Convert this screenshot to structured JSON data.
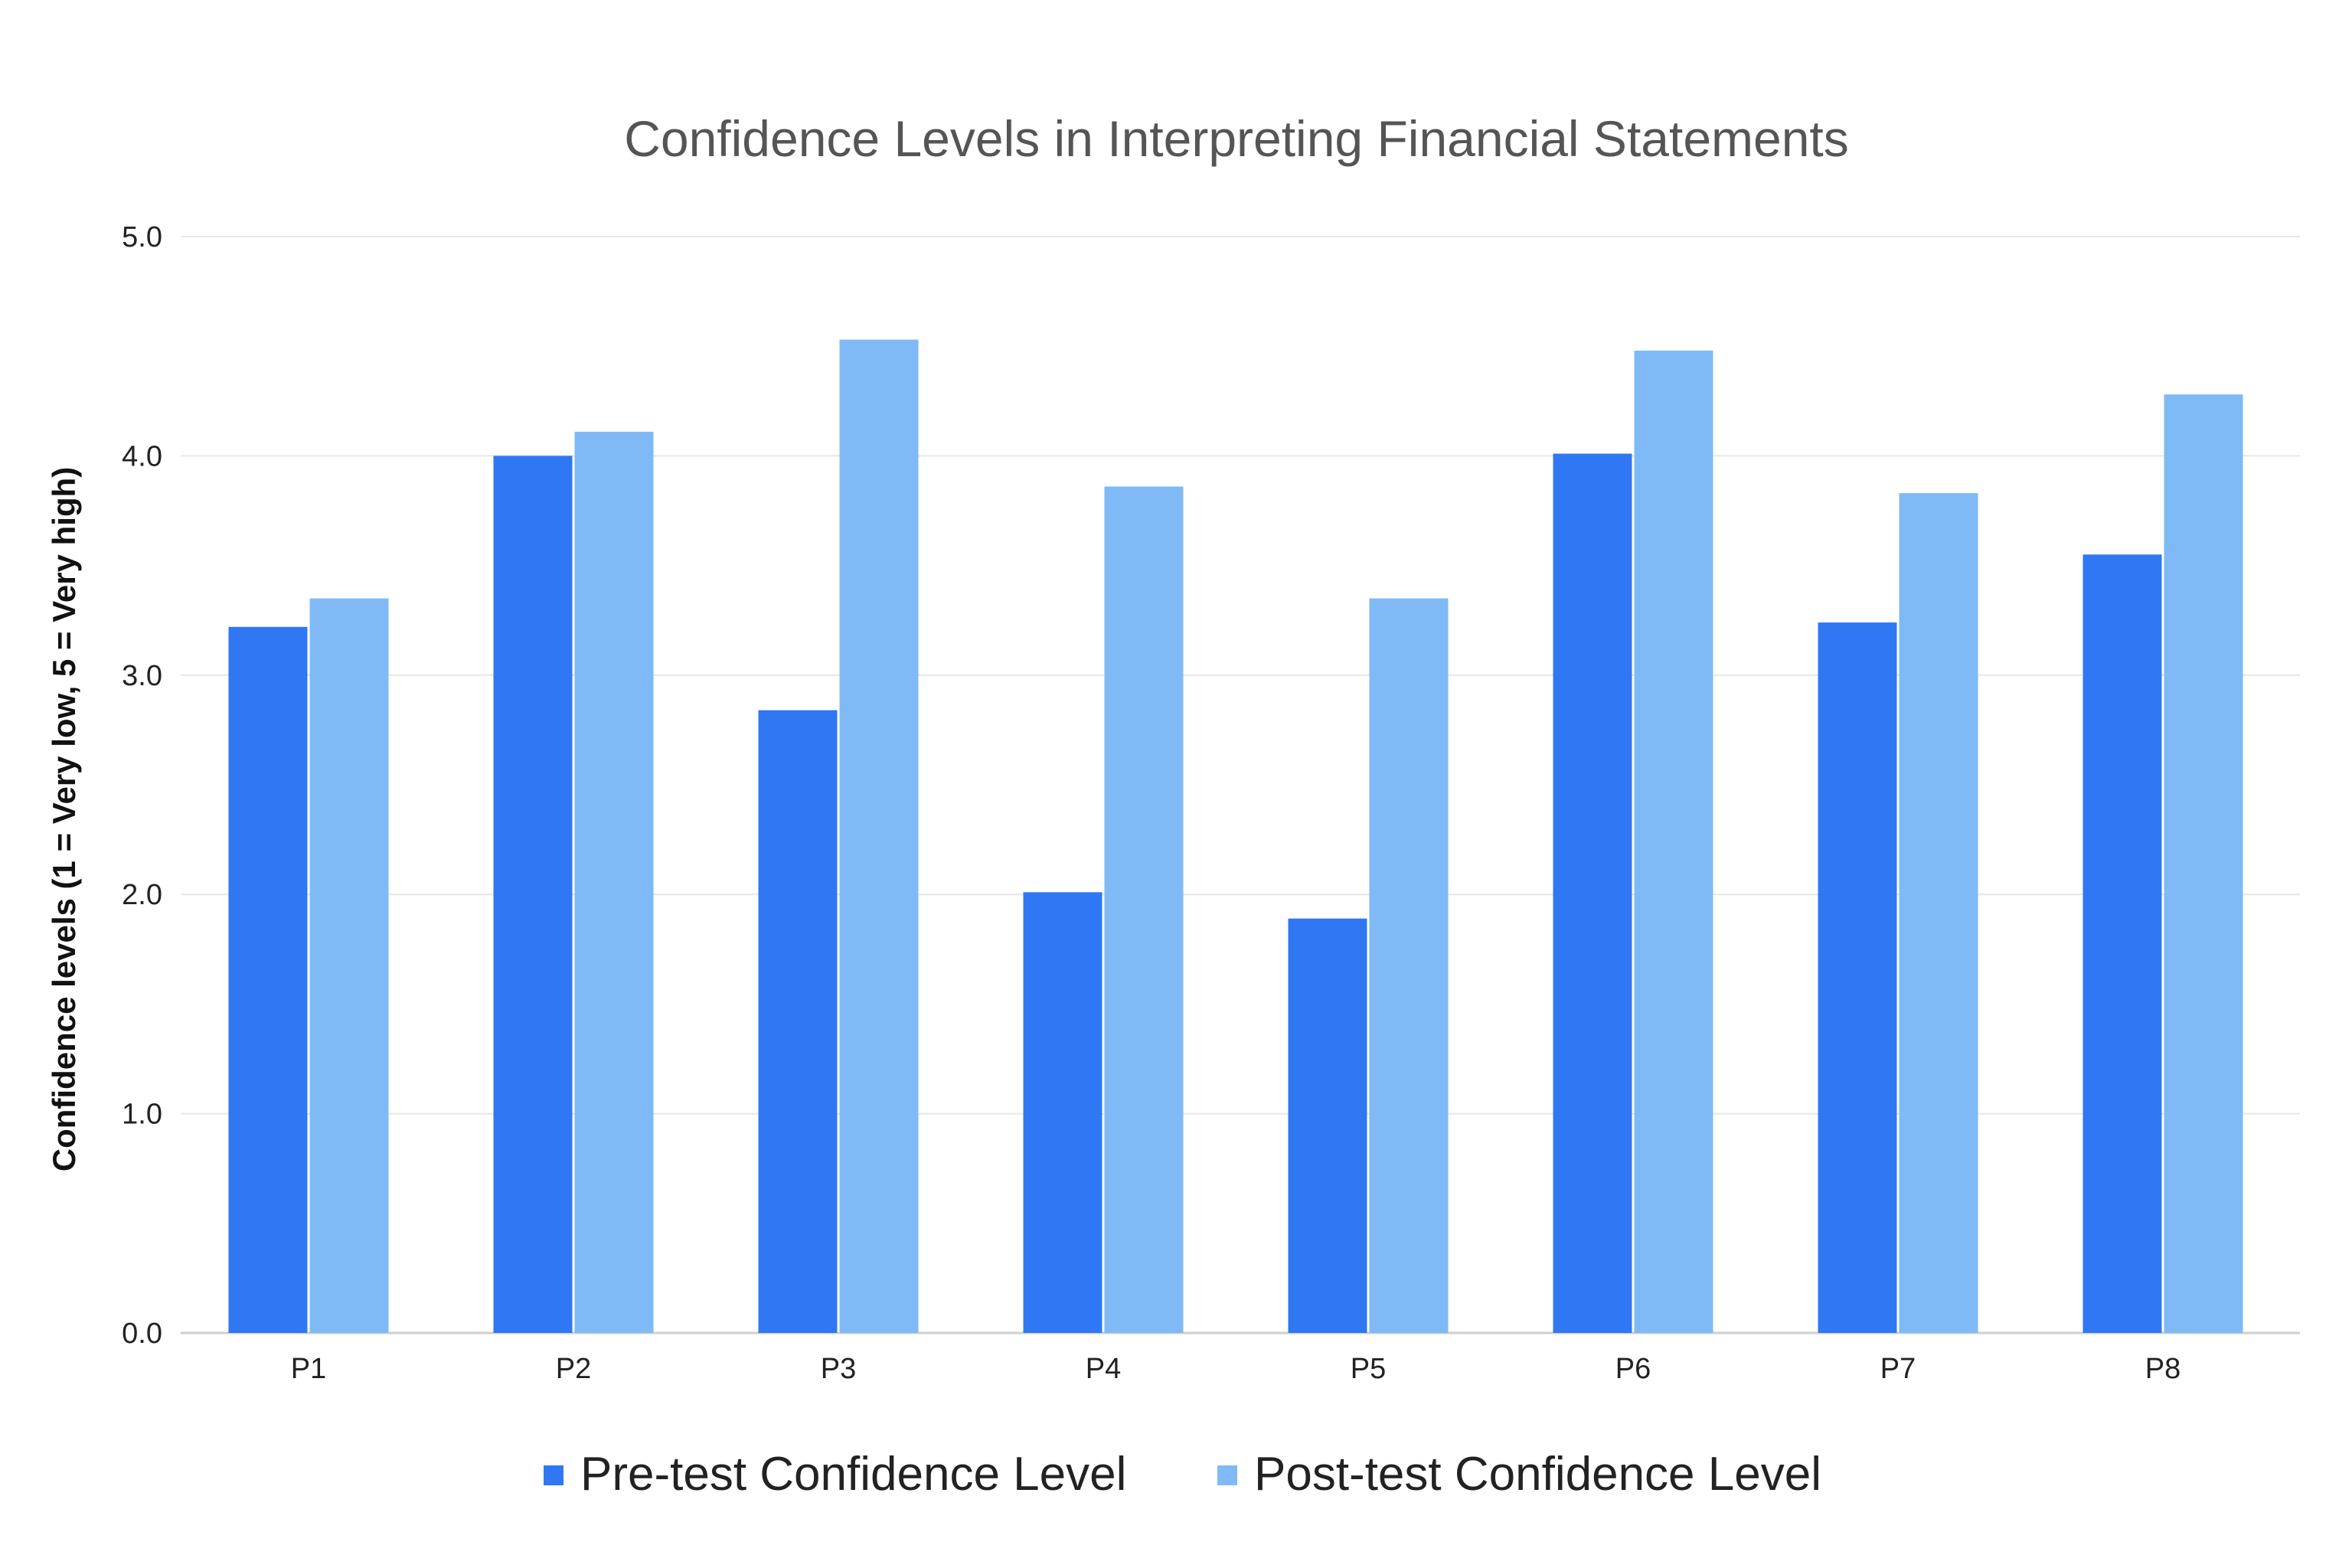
{
  "chart_data": {
    "type": "bar",
    "title": "Confidence Levels in Interpreting Financial Statements",
    "xlabel": "",
    "ylabel": "Confidence levels (1 = Very low, 5 = Very high)",
    "ylim": [
      0,
      5
    ],
    "yticks": [
      "0.0",
      "1.0",
      "2.0",
      "3.0",
      "4.0",
      "5.0"
    ],
    "categories": [
      "P1",
      "P2",
      "P3",
      "P4",
      "P5",
      "P6",
      "P7",
      "P8"
    ],
    "series": [
      {
        "name": "Pre-test Confidence Level",
        "color": "#3077f3",
        "values": [
          3.22,
          4.0,
          2.84,
          2.01,
          1.89,
          4.01,
          3.24,
          3.55
        ]
      },
      {
        "name": "Post-test Confidence Level",
        "color": "#7fbaf6",
        "values": [
          3.35,
          4.11,
          4.53,
          3.86,
          3.35,
          4.48,
          3.83,
          4.28
        ]
      }
    ],
    "grid": true,
    "legend": "bottom"
  }
}
